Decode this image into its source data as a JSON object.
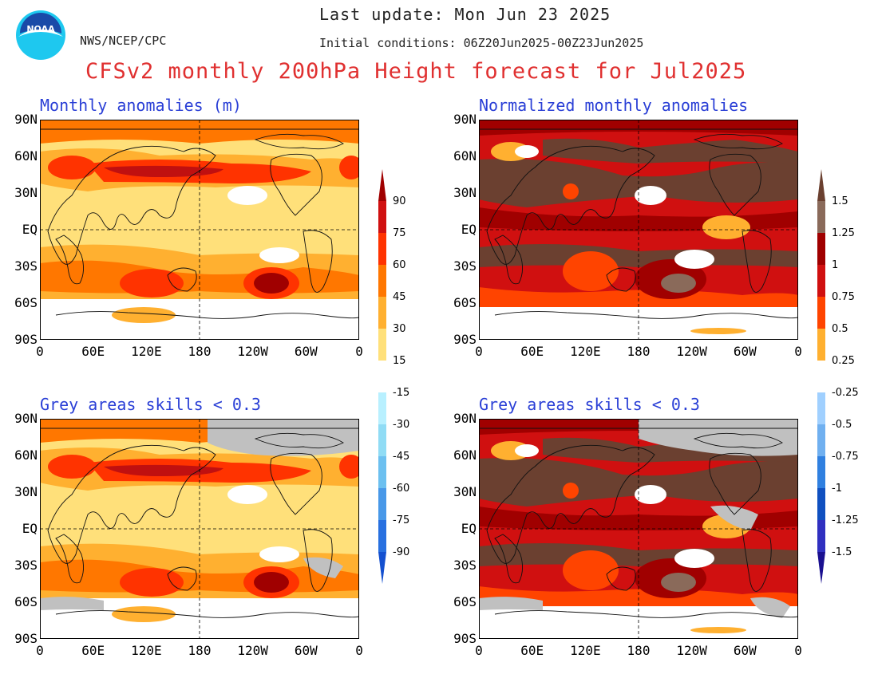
{
  "header": {
    "last_update": "Last update: Mon Jun 23 2025",
    "initial_conditions": "Initial conditions: 06Z20Jun2025-00Z23Jun2025",
    "org": "NWS/NCEP/CPC",
    "logo_text": "NOAA",
    "title": "CFSv2 monthly 200hPa Height forecast for Jul2025"
  },
  "panels": {
    "top_left": "Monthly anomalies (m)",
    "top_right": "Normalized monthly anomalies",
    "bottom_left": "Grey areas skills < 0.3",
    "bottom_right": "Grey areas skills < 0.3"
  },
  "axes": {
    "lat": [
      "90N",
      "60N",
      "30N",
      "EQ",
      "30S",
      "60S",
      "90S"
    ],
    "lon": [
      "0",
      "60E",
      "120E",
      "180",
      "120W",
      "60W",
      "0"
    ]
  },
  "colorbar_left": {
    "labels": [
      "90",
      "75",
      "60",
      "45",
      "30",
      "15",
      "-15",
      "-30",
      "-45",
      "-60",
      "-75",
      "-90"
    ],
    "colors": [
      "#a00000",
      "#d01010",
      "#ff3300",
      "#ff7700",
      "#ffb030",
      "#ffe07a",
      "#ffffff",
      "#b8f0ff",
      "#90dcf5",
      "#6cc0f0",
      "#4898e8",
      "#2870e0",
      "#1450d0"
    ]
  },
  "colorbar_right": {
    "labels": [
      "1.5",
      "1.25",
      "1",
      "0.75",
      "0.5",
      "0.25",
      "-0.25",
      "-0.5",
      "-0.75",
      "-1",
      "-1.25",
      "-1.5"
    ],
    "colors": [
      "#6b4030",
      "#8a6a5a",
      "#a00000",
      "#d01010",
      "#ff4400",
      "#ffb030",
      "#ffffff",
      "#a0d0ff",
      "#70b0f0",
      "#3080e0",
      "#1050c0",
      "#3030c0",
      "#1a1090"
    ]
  }
}
